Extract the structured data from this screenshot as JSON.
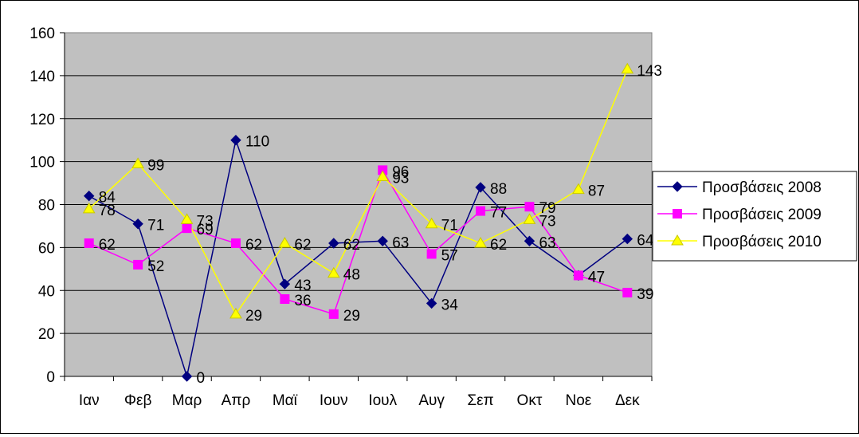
{
  "chart_data": {
    "type": "line",
    "categories": [
      "Ιαν",
      "Φεβ",
      "Μαρ",
      "Απρ",
      "Μαϊ",
      "Ιουν",
      "Ιουλ",
      "Αυγ",
      "Σεπ",
      "Οκτ",
      "Νοε",
      "Δεκ"
    ],
    "ylim": [
      0,
      160
    ],
    "yticks": [
      0,
      20,
      40,
      60,
      80,
      100,
      120,
      140,
      160
    ],
    "grid": true,
    "plot_background": "#c0c0c0",
    "legend_position": "right",
    "series": [
      {
        "name": "Προσβάσεις 2008",
        "color": "#000080",
        "marker": "diamond",
        "values": [
          84,
          71,
          0,
          110,
          43,
          62,
          63,
          34,
          88,
          63,
          47,
          64
        ],
        "labels": [
          "84",
          "71",
          "0",
          "110",
          "43",
          "62",
          "63",
          "34",
          "88",
          "63",
          "47",
          "64"
        ]
      },
      {
        "name": "Προσβάσεις 2009",
        "color": "#ff00ff",
        "marker": "square",
        "values": [
          62,
          52,
          69,
          62,
          36,
          29,
          96,
          57,
          77,
          79,
          47,
          39
        ],
        "labels": [
          "62",
          "52",
          "69",
          "62",
          "36",
          "29",
          "96",
          "57",
          "77",
          "79",
          "47",
          "39"
        ]
      },
      {
        "name": "Προσβάσεις 2010",
        "color": "#ffff00",
        "marker": "triangle",
        "values": [
          78,
          99,
          73,
          29,
          62,
          48,
          93,
          71,
          62,
          73,
          87,
          143
        ],
        "labels": [
          "78",
          "99",
          "73",
          "29",
          "62",
          "48",
          "93",
          "71",
          "62",
          "73",
          "87",
          "143"
        ]
      }
    ]
  }
}
